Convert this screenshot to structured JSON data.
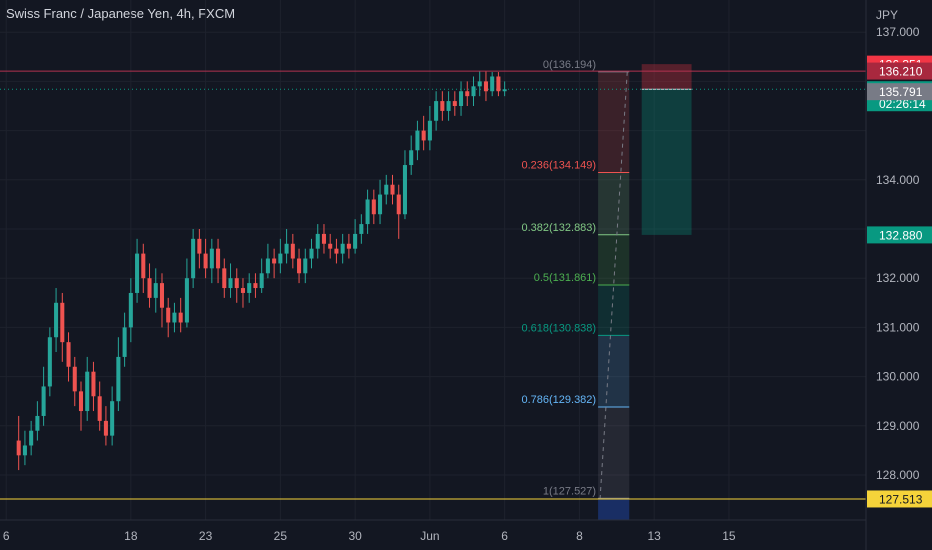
{
  "title": "Swiss Franc / Japanese Yen, 4h, FXCM",
  "chart_data": {
    "type": "candlestick",
    "title": "Swiss Franc / Japanese Yen, 4h, FXCM",
    "currency": "JPY",
    "ylim": [
      127.0,
      137.2
    ],
    "y_ticks": [
      "128.000",
      "129.000",
      "130.000",
      "131.000",
      "132.000",
      "134.000",
      "137.000"
    ],
    "x_ticks": [
      {
        "label": "6",
        "x": -2
      },
      {
        "label": "18",
        "x": 18
      },
      {
        "label": "23",
        "x": 30
      },
      {
        "label": "25",
        "x": 42
      },
      {
        "label": "30",
        "x": 54
      },
      {
        "label": "Jun",
        "x": 66
      },
      {
        "label": "6",
        "x": 78
      },
      {
        "label": "8",
        "x": 90
      },
      {
        "label": "13",
        "x": 102
      },
      {
        "label": "15",
        "x": 114
      }
    ],
    "x_range": [
      -3,
      136
    ],
    "up_color": "#26a69a",
    "down_color": "#ef5350",
    "candles": [
      [
        128.7,
        128.4,
        129.2,
        128.1
      ],
      [
        128.4,
        128.6,
        128.9,
        128.2
      ],
      [
        128.6,
        128.9,
        129.1,
        128.4
      ],
      [
        128.9,
        129.2,
        129.5,
        128.7
      ],
      [
        129.2,
        129.8,
        130.2,
        129.0
      ],
      [
        129.8,
        130.8,
        131.0,
        129.6
      ],
      [
        130.8,
        131.5,
        131.8,
        130.5
      ],
      [
        131.5,
        130.7,
        131.7,
        130.3
      ],
      [
        130.7,
        130.2,
        130.9,
        129.9
      ],
      [
        130.2,
        129.7,
        130.4,
        129.4
      ],
      [
        129.7,
        129.3,
        129.9,
        128.9
      ],
      [
        129.3,
        130.1,
        130.4,
        129.1
      ],
      [
        130.1,
        129.6,
        130.3,
        129.3
      ],
      [
        129.6,
        129.1,
        129.9,
        128.9
      ],
      [
        129.1,
        128.8,
        129.4,
        128.6
      ],
      [
        128.8,
        129.5,
        129.8,
        128.6
      ],
      [
        129.5,
        130.4,
        130.8,
        129.3
      ],
      [
        130.4,
        131.0,
        131.3,
        130.2
      ],
      [
        131.0,
        131.7,
        132.0,
        130.7
      ],
      [
        131.7,
        132.5,
        132.8,
        131.5
      ],
      [
        132.5,
        132.0,
        132.7,
        131.7
      ],
      [
        132.0,
        131.6,
        132.3,
        131.4
      ],
      [
        131.6,
        131.9,
        132.2,
        131.3
      ],
      [
        131.9,
        131.4,
        132.1,
        131.0
      ],
      [
        131.4,
        131.1,
        131.6,
        130.8
      ],
      [
        131.1,
        131.3,
        131.5,
        130.9
      ],
      [
        131.3,
        131.1,
        131.6,
        130.9
      ],
      [
        131.1,
        132.0,
        132.4,
        131.0
      ],
      [
        132.0,
        132.8,
        133.0,
        131.8
      ],
      [
        132.8,
        132.5,
        133.0,
        132.2
      ],
      [
        132.5,
        132.2,
        132.8,
        132.0
      ],
      [
        132.2,
        132.6,
        132.8,
        131.9
      ],
      [
        132.6,
        132.2,
        132.8,
        131.9
      ],
      [
        132.2,
        131.8,
        132.4,
        131.6
      ],
      [
        131.8,
        132.0,
        132.3,
        131.6
      ],
      [
        132.0,
        131.8,
        132.2,
        131.5
      ],
      [
        131.8,
        131.7,
        132.0,
        131.4
      ],
      [
        131.7,
        131.9,
        132.1,
        131.5
      ],
      [
        131.9,
        131.8,
        132.1,
        131.6
      ],
      [
        131.8,
        132.1,
        132.4,
        131.7
      ],
      [
        132.1,
        132.4,
        132.7,
        132.0
      ],
      [
        132.4,
        132.3,
        132.6,
        132.0
      ],
      [
        132.3,
        132.5,
        132.8,
        132.1
      ],
      [
        132.5,
        132.7,
        133.0,
        132.3
      ],
      [
        132.7,
        132.4,
        132.9,
        132.2
      ],
      [
        132.4,
        132.1,
        132.6,
        131.9
      ],
      [
        132.1,
        132.4,
        132.6,
        131.9
      ],
      [
        132.4,
        132.6,
        132.8,
        132.2
      ],
      [
        132.6,
        132.9,
        133.1,
        132.4
      ],
      [
        132.9,
        132.7,
        133.1,
        132.5
      ],
      [
        132.7,
        132.6,
        132.9,
        132.4
      ],
      [
        132.6,
        132.5,
        132.8,
        132.3
      ],
      [
        132.5,
        132.7,
        132.9,
        132.3
      ],
      [
        132.7,
        132.6,
        132.9,
        132.4
      ],
      [
        132.6,
        132.9,
        133.2,
        132.5
      ],
      [
        132.9,
        133.1,
        133.3,
        132.7
      ],
      [
        133.1,
        133.6,
        133.8,
        132.9
      ],
      [
        133.6,
        133.3,
        133.8,
        133.1
      ],
      [
        133.3,
        133.7,
        134.0,
        133.1
      ],
      [
        133.7,
        133.9,
        134.1,
        133.5
      ],
      [
        133.9,
        133.7,
        134.1,
        133.5
      ],
      [
        133.7,
        133.3,
        133.9,
        132.8
      ],
      [
        133.3,
        134.3,
        134.6,
        133.2
      ],
      [
        134.3,
        134.6,
        134.9,
        134.1
      ],
      [
        134.6,
        135.0,
        135.2,
        134.4
      ],
      [
        135.0,
        134.8,
        135.3,
        134.6
      ],
      [
        134.8,
        135.2,
        135.5,
        134.6
      ],
      [
        135.2,
        135.6,
        135.8,
        135.0
      ],
      [
        135.6,
        135.4,
        135.8,
        135.2
      ],
      [
        135.4,
        135.6,
        135.8,
        135.2
      ],
      [
        135.6,
        135.5,
        135.8,
        135.3
      ],
      [
        135.5,
        135.8,
        136.0,
        135.3
      ],
      [
        135.8,
        135.7,
        136.0,
        135.5
      ],
      [
        135.7,
        135.9,
        136.1,
        135.5
      ],
      [
        135.9,
        136.0,
        136.2,
        135.7
      ],
      [
        136.0,
        135.8,
        136.2,
        135.6
      ],
      [
        135.8,
        136.1,
        136.19,
        135.7
      ],
      [
        136.1,
        135.8,
        136.19,
        135.7
      ],
      [
        135.8,
        135.84,
        136.0,
        135.7
      ]
    ],
    "fib_levels": [
      {
        "label": "0(136.194)",
        "value": 136.194,
        "color": "#787b86"
      },
      {
        "label": "0.236(134.149)",
        "value": 134.149,
        "color": "#ef5350"
      },
      {
        "label": "0.382(132.883)",
        "value": 132.883,
        "color": "#81c784"
      },
      {
        "label": "0.5(131.861)",
        "value": 131.861,
        "color": "#4caf50"
      },
      {
        "label": "0.618(130.838)",
        "value": 130.838,
        "color": "#089981"
      },
      {
        "label": "0.786(129.382)",
        "value": 129.382,
        "color": "#64b5f6"
      },
      {
        "label": "1(127.527)",
        "value": 127.527,
        "color": "#787b86"
      }
    ],
    "fib_x_range": [
      93,
      98
    ],
    "position_box": {
      "x_range": [
        100,
        108
      ],
      "entry": 135.841,
      "stop": 136.351,
      "target": 132.88
    },
    "horizontal_lines": [
      {
        "value": 136.21,
        "color": "#b2324f"
      },
      {
        "value": 127.513,
        "color": "#f5d33a"
      }
    ],
    "price_tags": [
      {
        "text": "136.351",
        "value": 136.351,
        "bg": "#f23645",
        "fg": "#ffffff"
      },
      {
        "text": "136.210",
        "value": 136.21,
        "bg": "#a8283e",
        "fg": "#ffffff"
      },
      {
        "text": "135.841",
        "sub": "02:26:14",
        "value": 135.841,
        "bg": "#089981",
        "fg": "#ffffff"
      },
      {
        "text": "135.791",
        "value": 135.791,
        "bg": "#787b86",
        "fg": "#ffffff"
      },
      {
        "text": "132.880",
        "value": 132.88,
        "bg": "#089981",
        "fg": "#ffffff"
      },
      {
        "text": "127.513",
        "value": 127.513,
        "bg": "#f5d33a",
        "fg": "#131722"
      }
    ]
  }
}
